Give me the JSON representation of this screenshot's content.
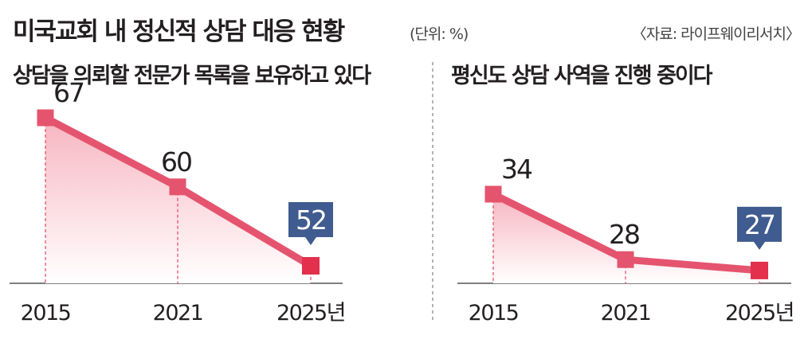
{
  "header": {
    "title": "미국교회 내 정신적 상담 대응 현황",
    "unit": "(단위: %)",
    "source": "〈자료: 라이프웨이리서치〉"
  },
  "colors": {
    "line": "#e5546e",
    "marker": "#e2304d",
    "area_top": "#f7b5c0",
    "area_bottom": "#ffffff",
    "callout": "#3f5b8f"
  },
  "chart_data": [
    {
      "type": "area",
      "title": "상담을 의뢰할 전문가 목록을 보유하고 있다",
      "x": [
        "2015",
        "2021",
        "2025"
      ],
      "values": [
        67,
        60,
        52
      ],
      "x_suffix_last": "년",
      "highlight_last": true,
      "grid": false
    },
    {
      "type": "area",
      "title": "평신도 상담 사역을 진행 중이다",
      "x": [
        "2015",
        "2021",
        "2025"
      ],
      "values": [
        34,
        28,
        27
      ],
      "x_suffix_last": "년",
      "highlight_last": true,
      "grid": false
    }
  ]
}
